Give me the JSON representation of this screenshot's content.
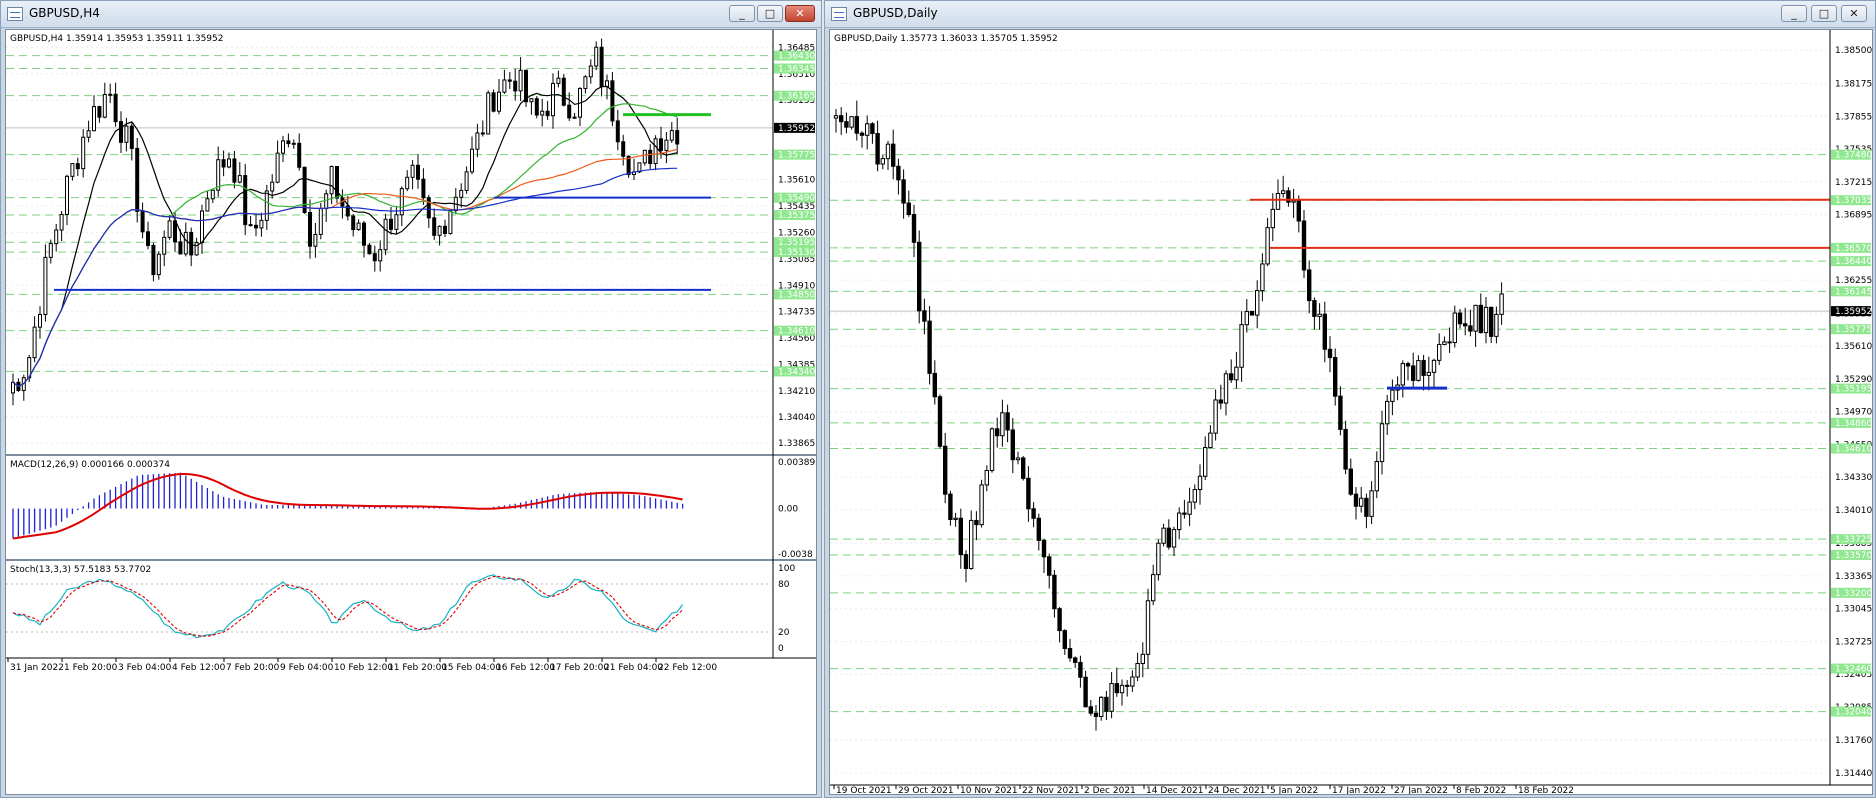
{
  "left_window": {
    "title": "GBPUSD,H4",
    "info": "GBPUSD,H4  1.35914 1.35953 1.35911 1.35952",
    "price_labels": [
      "1.36485",
      "1.36310",
      "1.36135",
      "1.35775",
      "1.35610",
      "1.35435",
      "1.35260",
      "1.35085",
      "1.34910",
      "1.34735",
      "1.34560",
      "1.34385",
      "1.34210",
      "1.34040",
      "1.33865"
    ],
    "highlight_labels": [
      "1.36430",
      "1.36345",
      "1.36165",
      "1.35775",
      "1.35490",
      "1.35375",
      "1.35195",
      "1.35130",
      "1.34850",
      "1.34610",
      "1.34340"
    ],
    "current_price": "1.35952",
    "x_labels": [
      "31 Jan 2022",
      "1 Feb 20:00",
      "3 Feb 04:00",
      "4 Feb 12:00",
      "7 Feb 20:00",
      "9 Feb 04:00",
      "10 Feb 12:00",
      "11 Feb 20:00",
      "15 Feb 04:00",
      "16 Feb 12:00",
      "17 Feb 20:00",
      "21 Feb 04:00",
      "22 Feb 12:00"
    ],
    "macd_label": "MACD(12,26,9) 0.000166 0.000374",
    "macd_scale": [
      "0.003892",
      "0.00",
      "-0.0038"
    ],
    "stoch_label": "Stoch(13,3,3) 57.5183 53.7702",
    "stoch_scale": [
      "100",
      "80",
      "20",
      "0"
    ]
  },
  "right_window": {
    "title": "GBPUSD,Daily",
    "info": "GBPUSD,Daily  1.35773 1.36033 1.35705 1.35952",
    "price_labels": [
      "1.38500",
      "1.38175",
      "1.37855",
      "1.37535",
      "1.37215",
      "1.36895",
      "1.36575",
      "1.36255",
      "1.35930",
      "1.35610",
      "1.35290",
      "1.34970",
      "1.34650",
      "1.34330",
      "1.34010",
      "1.33685",
      "1.33365",
      "1.33045",
      "1.32725",
      "1.32405",
      "1.32085",
      "1.31760",
      "1.31440"
    ],
    "highlight_labels": [
      "1.37480",
      "1.37035",
      "1.36570",
      "1.36440",
      "1.36145",
      "1.35775",
      "1.35195",
      "1.34860",
      "1.34610",
      "1.33725",
      "1.33570",
      "1.33200",
      "1.32460",
      "1.32040"
    ],
    "current_price": "1.35952",
    "x_labels": [
      "19 Oct 2021",
      "29 Oct 2021",
      "10 Nov 2021",
      "22 Nov 2021",
      "2 Dec 2021",
      "14 Dec 2021",
      "24 Dec 2021",
      "5 Jan 2022",
      "17 Jan 2022",
      "27 Jan 2022",
      "8 Feb 2022",
      "18 Feb 2022"
    ]
  },
  "buttons": {
    "minimize": "_",
    "maximize": "□",
    "close": "✕"
  },
  "colors": {
    "up": "#ffffff",
    "down": "#000000",
    "grid": "#7fd17f",
    "ma_blue": "#1530c8",
    "ma_red": "#f05a1e",
    "ma_green": "#31b331",
    "ma_black": "#000000",
    "line_red": "#e03010",
    "line_green": "#22c022",
    "macd_hist": "#2020d0",
    "macd_signal": "#e00000",
    "stoch_main": "#16b3c3",
    "stoch_signal": "#e00000",
    "label_bg": "#8fe88f"
  }
}
